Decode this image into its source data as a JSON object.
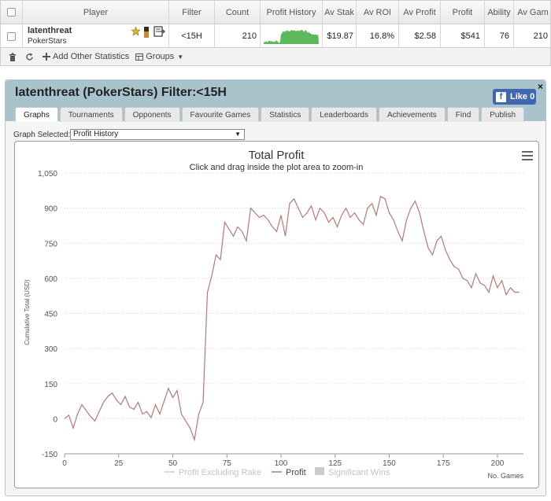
{
  "table": {
    "headers": [
      "Player",
      "Filter",
      "Count",
      "Profit History",
      "Av Stak",
      "Av ROI",
      "Av Profit",
      "Profit",
      "Ability",
      "Av Gam"
    ],
    "row": {
      "player": "latenthreat",
      "site": "PokerStars",
      "filter": "<15H",
      "count": "210",
      "av_stake": "$19.87",
      "av_roi": "16.8%",
      "av_profit": "$2.58",
      "profit": "$541",
      "ability": "76",
      "av_games": "210"
    },
    "colors": {
      "sparkline": "#5cb85c"
    }
  },
  "toolbar": {
    "add_stats": "Add Other Statistics",
    "groups": "Groups"
  },
  "panel": {
    "title": "latenthreat (PokerStars) Filter:<15H",
    "close": "×",
    "fb_like": "Like 0",
    "tabs": [
      "Graphs",
      "Tournaments",
      "Opponents",
      "Favourite Games",
      "Statistics",
      "Leaderboards",
      "Achievements",
      "Find",
      "Publish"
    ],
    "active_tab": 0,
    "graph_selected_label": "Graph Selected:",
    "graph_selected_value": "Profit History"
  },
  "chart_data": {
    "type": "line",
    "title": "Total Profit",
    "subtitle": "Click and drag inside the plot area to zoom-in",
    "ylabel": "Cumulative Total (USD)",
    "xlabel": "No. Games",
    "xlim": [
      0,
      212
    ],
    "ylim": [
      -150,
      1050
    ],
    "xticks": [
      0,
      25,
      50,
      75,
      100,
      125,
      150,
      175,
      200
    ],
    "yticks": [
      -150,
      0,
      150,
      300,
      450,
      600,
      750,
      900,
      1050
    ],
    "ytick_labels": [
      "-150",
      "0",
      "150",
      "300",
      "450",
      "600",
      "750",
      "900",
      "1,050"
    ],
    "grid": true,
    "line_color": "#b97777",
    "legend": [
      {
        "name": "Profit Excluding Rake",
        "color": "#cccccc",
        "visible": false
      },
      {
        "name": "Profit",
        "color": "#b97777",
        "visible": true
      },
      {
        "name": "Significant Wins",
        "color": "#cccccc",
        "visible": false
      }
    ],
    "x": [
      0,
      2,
      4,
      6,
      8,
      10,
      12,
      14,
      16,
      18,
      20,
      22,
      24,
      26,
      28,
      30,
      32,
      34,
      36,
      38,
      40,
      42,
      44,
      46,
      48,
      50,
      52,
      54,
      56,
      58,
      60,
      62,
      64,
      66,
      68,
      70,
      72,
      74,
      76,
      78,
      80,
      82,
      84,
      86,
      88,
      90,
      92,
      94,
      96,
      98,
      100,
      102,
      104,
      106,
      108,
      110,
      112,
      114,
      116,
      118,
      120,
      122,
      124,
      126,
      128,
      130,
      132,
      134,
      136,
      138,
      140,
      142,
      144,
      146,
      148,
      150,
      152,
      154,
      156,
      158,
      160,
      162,
      164,
      166,
      168,
      170,
      172,
      174,
      176,
      178,
      180,
      182,
      184,
      186,
      188,
      190,
      192,
      194,
      196,
      198,
      200,
      202,
      204,
      206,
      208,
      210
    ],
    "y": [
      0,
      15,
      -40,
      20,
      60,
      35,
      10,
      -10,
      30,
      70,
      95,
      110,
      80,
      60,
      95,
      50,
      40,
      70,
      20,
      30,
      5,
      60,
      20,
      75,
      130,
      90,
      120,
      20,
      -10,
      -40,
      -90,
      20,
      70,
      540,
      610,
      700,
      680,
      840,
      810,
      780,
      820,
      800,
      760,
      900,
      880,
      860,
      870,
      850,
      820,
      800,
      870,
      780,
      920,
      940,
      900,
      860,
      880,
      910,
      850,
      900,
      880,
      840,
      860,
      820,
      870,
      900,
      860,
      880,
      850,
      830,
      900,
      920,
      870,
      950,
      940,
      880,
      850,
      800,
      760,
      850,
      900,
      930,
      880,
      800,
      730,
      700,
      760,
      780,
      720,
      680,
      650,
      640,
      600,
      590,
      560,
      620,
      580,
      570,
      540,
      610,
      560,
      590,
      530,
      560,
      540,
      541
    ]
  }
}
